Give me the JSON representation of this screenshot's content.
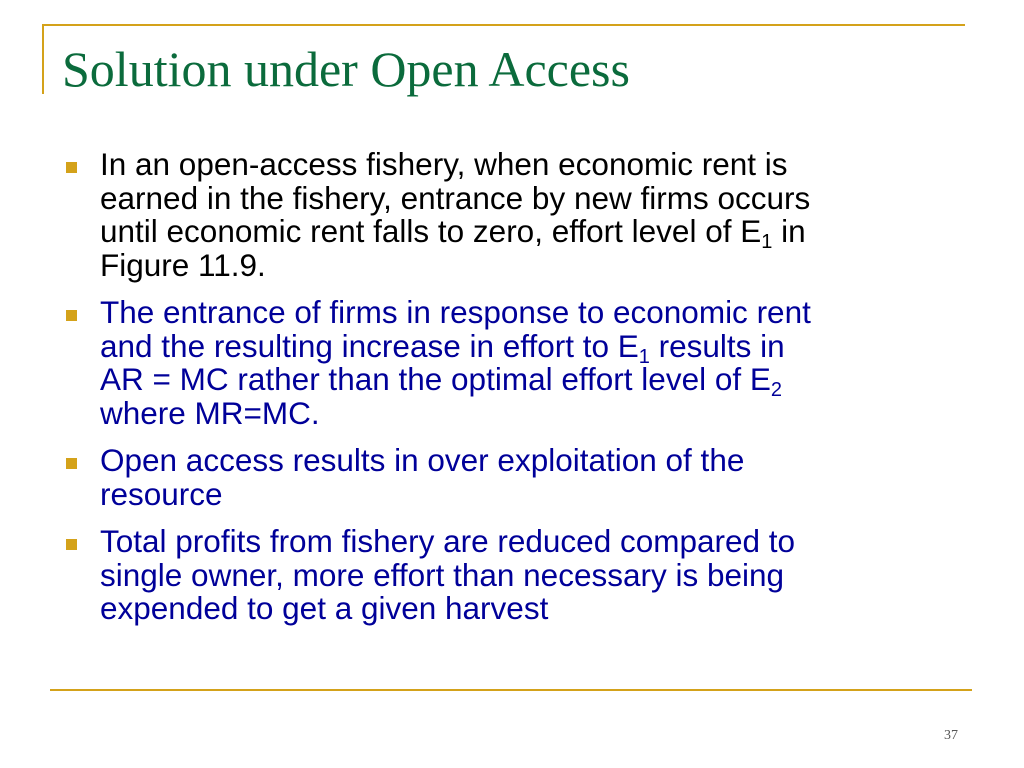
{
  "slide": {
    "title": "Solution under Open Access",
    "page_number": "37",
    "colors": {
      "title": "#0b6b3c",
      "accent": "#d4a21a",
      "bullet1_text": "#000000",
      "other_text": "#000099"
    },
    "bullets": [
      {
        "color": "#000000",
        "lines": [
          {
            "t": "In an open-access fishery, when economic rent is"
          },
          {
            "t": "earned in the fishery, entrance by new firms occurs"
          },
          {
            "t": "until economic rent falls to zero, effort level of E",
            "sub": "1",
            "after": " in"
          },
          {
            "t": "Figure 11.9."
          }
        ]
      },
      {
        "color": "#000099",
        "lines": [
          {
            "t": "The entrance of firms in response to economic rent"
          },
          {
            "t": "and the resulting increase in effort to E",
            "sub": "1",
            "after": " results in"
          },
          {
            "t": "AR = MC rather than the optimal effort level of E",
            "sub": "2"
          },
          {
            "t": "where MR=MC."
          }
        ]
      },
      {
        "color": "#000099",
        "lines": [
          {
            "t": "Open access results in over exploitation of the"
          },
          {
            "t": "resource"
          }
        ]
      },
      {
        "color": "#000099",
        "lines": [
          {
            "t": "Total profits from fishery are reduced compared to"
          },
          {
            "t": "single owner, more effort than necessary is being"
          },
          {
            "t": "expended to get a given harvest"
          }
        ]
      }
    ]
  }
}
